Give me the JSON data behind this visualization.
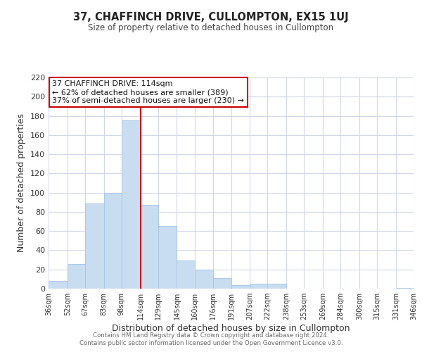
{
  "title": "37, CHAFFINCH DRIVE, CULLOMPTON, EX15 1UJ",
  "subtitle": "Size of property relative to detached houses in Cullompton",
  "xlabel": "Distribution of detached houses by size in Cullompton",
  "ylabel": "Number of detached properties",
  "bar_edges": [
    36,
    52,
    67,
    83,
    98,
    114,
    129,
    145,
    160,
    176,
    191,
    207,
    222,
    238,
    253,
    269,
    284,
    300,
    315,
    331,
    346
  ],
  "bar_heights": [
    8,
    26,
    89,
    100,
    175,
    87,
    65,
    29,
    20,
    11,
    4,
    5,
    5,
    0,
    0,
    0,
    0,
    0,
    0,
    1
  ],
  "bar_color": "#c9ddf0",
  "bar_edge_color": "#a8c8e8",
  "vline_x": 114,
  "vline_color": "#cc0000",
  "ylim": [
    0,
    220
  ],
  "xlim": [
    36,
    346
  ],
  "annotation_title": "37 CHAFFINCH DRIVE: 114sqm",
  "annotation_line1": "← 62% of detached houses are smaller (389)",
  "annotation_line2": "37% of semi-detached houses are larger (230) →",
  "annotation_box_color": "#ffffff",
  "annotation_box_edge_color": "#cc0000",
  "tick_labels": [
    "36sqm",
    "52sqm",
    "67sqm",
    "83sqm",
    "98sqm",
    "114sqm",
    "129sqm",
    "145sqm",
    "160sqm",
    "176sqm",
    "191sqm",
    "207sqm",
    "222sqm",
    "238sqm",
    "253sqm",
    "269sqm",
    "284sqm",
    "300sqm",
    "315sqm",
    "331sqm",
    "346sqm"
  ],
  "yticks": [
    0,
    20,
    40,
    60,
    80,
    100,
    120,
    140,
    160,
    180,
    200,
    220
  ],
  "footer1": "Contains HM Land Registry data © Crown copyright and database right 2024.",
  "footer2": "Contains public sector information licensed under the Open Government Licence v3.0.",
  "bg_color": "#ffffff",
  "grid_color": "#d0d8e8"
}
